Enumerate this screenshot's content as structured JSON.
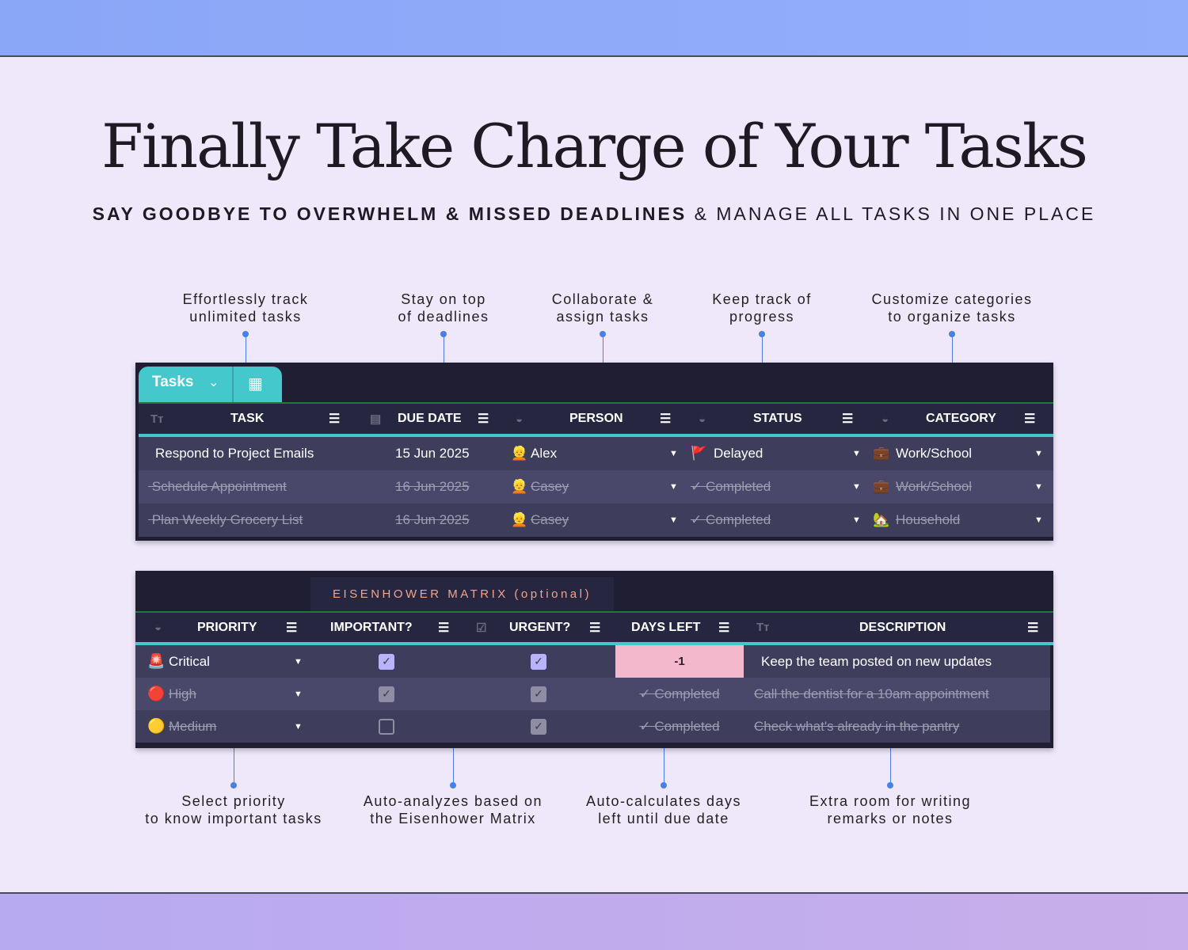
{
  "title": "Finally Take Charge of Your Tasks",
  "subtitle_bold": "SAY GOODBYE TO OVERWHELM & MISSED DEADLINES",
  "subtitle_rest": " & MANAGE ALL TASKS IN ONE PLACE",
  "top_annotations": [
    {
      "l1": "Effortlessly track",
      "l2": "unlimited tasks"
    },
    {
      "l1": "Stay on top",
      "l2": "of deadlines"
    },
    {
      "l1": "Collaborate &",
      "l2": "assign tasks"
    },
    {
      "l1": "Keep track of",
      "l2": "progress"
    },
    {
      "l1": "Customize categories",
      "l2": "to organize tasks"
    }
  ],
  "bottom_annotations": [
    {
      "l1": "Select priority",
      "l2": "to know important tasks"
    },
    {
      "l1": "Auto-analyzes based on",
      "l2": "the Eisenhower Matrix"
    },
    {
      "l1": "Auto-calculates days",
      "l2": "left until due date"
    },
    {
      "l1": "Extra room for writing",
      "l2": "remarks or notes"
    }
  ],
  "tasks_table": {
    "tab_label": "Tasks",
    "columns": [
      "TASK",
      "DUE DATE",
      "PERSON",
      "STATUS",
      "CATEGORY"
    ],
    "rows": [
      {
        "task": "Respond to Project Emails",
        "due": "15 Jun 2025",
        "person": "Alex",
        "status": "Delayed",
        "status_icon": "🚩",
        "category": "Work/School",
        "category_icon": "💼",
        "done": false
      },
      {
        "task": "Schedule Appointment",
        "due": "16 Jun 2025",
        "person": "Casey",
        "status": "✓ Completed",
        "status_icon": "",
        "category": "Work/School",
        "category_icon": "💼",
        "done": true
      },
      {
        "task": "Plan Weekly Grocery List",
        "due": "16 Jun 2025",
        "person": "Casey",
        "status": "✓ Completed",
        "status_icon": "",
        "category": "Household",
        "category_icon": "🏡",
        "done": true
      }
    ]
  },
  "matrix_table": {
    "section_title": "EISENHOWER MATRIX (optional)",
    "columns": [
      "PRIORITY",
      "IMPORTANT?",
      "URGENT?",
      "DAYS LEFT",
      "DESCRIPTION"
    ],
    "rows": [
      {
        "priority": "Critical",
        "icon": "🚨",
        "important": true,
        "urgent": true,
        "days_left": "-1",
        "description": "Keep the team posted on new updates",
        "done": false
      },
      {
        "priority": "High",
        "icon": "🔴",
        "important": true,
        "urgent": true,
        "days_left": "✓ Completed",
        "description": "Call the dentist for a 10am appointment",
        "done": true
      },
      {
        "priority": "Medium",
        "icon": "🟡",
        "important": false,
        "urgent": true,
        "days_left": "✓ Completed",
        "description": "Check what's already in the pantry",
        "done": true
      }
    ]
  },
  "colors": {
    "accent_teal": "#45c8cc",
    "overdue_pink": "#f3b8cc",
    "checkbox_active": "#b9b3fb",
    "matrix_title": "#f0a48c"
  }
}
